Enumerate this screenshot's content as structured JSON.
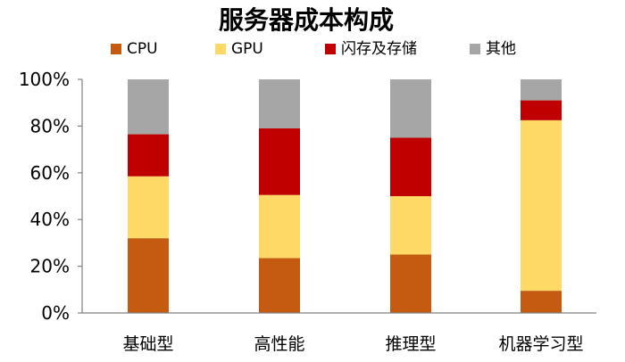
{
  "chart_data": {
    "type": "bar",
    "stacked": true,
    "title": "服务器成本构成",
    "categories": [
      "基础型",
      "高性能",
      "推理型",
      "机器学习型"
    ],
    "series": [
      {
        "name": "CPU",
        "color": "#C55A11",
        "values": [
          32,
          23.5,
          25,
          9.5
        ]
      },
      {
        "name": "GPU",
        "color": "#FFD966",
        "values": [
          26.5,
          27,
          25,
          73
        ]
      },
      {
        "name": "闪存及存储",
        "color": "#C00000",
        "values": [
          18,
          28.5,
          25,
          8.5
        ]
      },
      {
        "name": "其他",
        "color": "#A6A6A6",
        "values": [
          23.5,
          21,
          25,
          9
        ]
      }
    ],
    "ylim": [
      0,
      100
    ],
    "yticks": [
      "0%",
      "20%",
      "40%",
      "60%",
      "80%",
      "100%"
    ],
    "ytick_values": [
      0,
      20,
      40,
      60,
      80,
      100
    ],
    "xlabel": "",
    "ylabel": "",
    "legend_position": "top",
    "grid": false
  }
}
